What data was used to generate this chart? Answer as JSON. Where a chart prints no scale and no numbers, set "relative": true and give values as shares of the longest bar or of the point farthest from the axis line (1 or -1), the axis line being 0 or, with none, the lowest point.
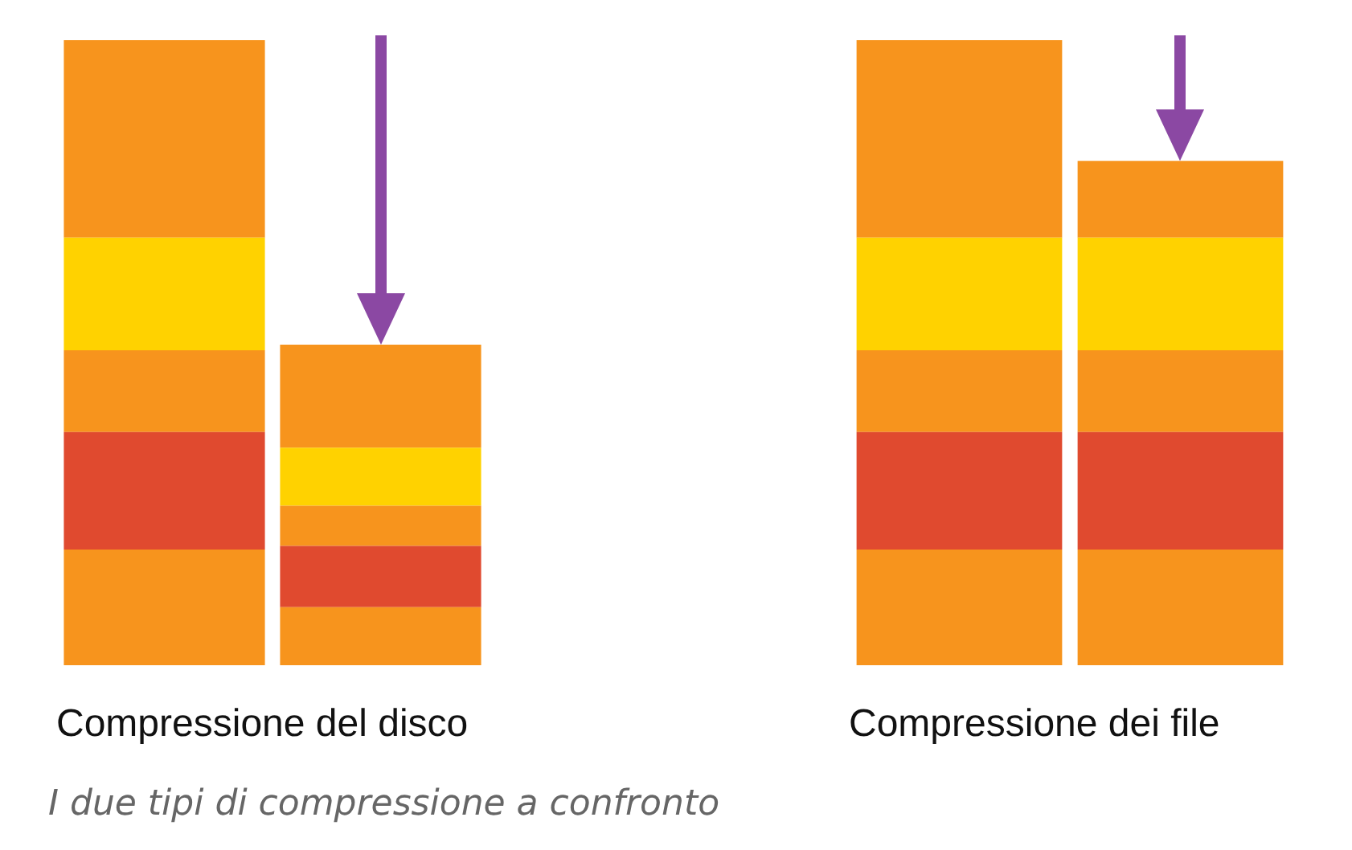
{
  "chart_data": [
    {
      "type": "bar",
      "stacked": true,
      "relative": true,
      "categories": [
        null,
        null
      ],
      "xlabel": "Compressione del disco",
      "legend": false,
      "grid": false,
      "series": [
        {
          "color": "#f7941d",
          "values": [
            0.185,
            0.093
          ]
        },
        {
          "color": "#e04a2f",
          "values": [
            0.188,
            0.098
          ]
        },
        {
          "color": "#f7941d",
          "values": [
            0.131,
            0.064
          ]
        },
        {
          "color": "#ffd200",
          "values": [
            0.18,
            0.093
          ]
        },
        {
          "color": "#f7941d",
          "values": [
            0.316,
            0.165
          ]
        }
      ],
      "annotations": [
        "I due tipi di compressione a confronto"
      ]
    },
    {
      "type": "bar",
      "stacked": true,
      "relative": true,
      "categories": [
        null,
        null
      ],
      "xlabel": "Compressione dei file",
      "legend": false,
      "grid": false,
      "series": [
        {
          "color": "#f7941d",
          "values": [
            0.185,
            0.185
          ]
        },
        {
          "color": "#e04a2f",
          "values": [
            0.188,
            0.188
          ]
        },
        {
          "color": "#f7941d",
          "values": [
            0.131,
            0.131
          ]
        },
        {
          "color": "#ffd200",
          "values": [
            0.18,
            0.18
          ]
        },
        {
          "color": "#f7941d",
          "values": [
            0.316,
            0.123
          ]
        }
      ]
    }
  ]
}
